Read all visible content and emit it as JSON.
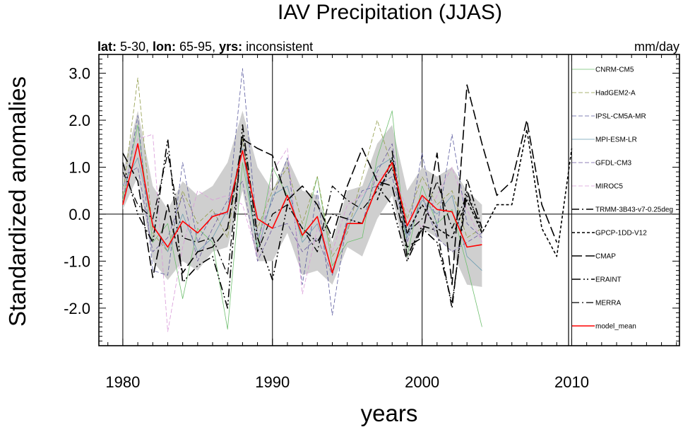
{
  "chart_data": {
    "type": "line",
    "title": "IAV Precipitation (JJAS)",
    "subtitle_left": [
      {
        "text": "lat:",
        "bold": true
      },
      {
        "text": " 5-30, ",
        "bold": false
      },
      {
        "text": "lon:",
        "bold": true
      },
      {
        "text": " 65-95, ",
        "bold": false
      },
      {
        "text": "yrs:",
        "bold": true
      },
      {
        "text": " inconsistent",
        "bold": false
      }
    ],
    "subtitle_right": "mm/day",
    "xlabel": "years",
    "ylabel": "Standardized anomalies",
    "xlim": [
      1978.4,
      2017.2
    ],
    "ylim": [
      -2.8,
      3.4
    ],
    "xticks": [
      1980,
      1990,
      2000,
      2010
    ],
    "yticks": [
      3.0,
      2.0,
      1.0,
      0.0,
      -1.0,
      -2.0
    ],
    "ytick_labels": [
      "3.0",
      "2.0",
      "1.0",
      "0.0",
      "-1.0",
      "-2.0"
    ],
    "vlines": [
      1980,
      1990,
      2000,
      2010
    ],
    "hline": 0,
    "legend_position": "right",
    "envelope": {
      "x": [
        1980,
        1981,
        1982,
        1983,
        1984,
        1985,
        1986,
        1987,
        1988,
        1989,
        1990,
        1991,
        1992,
        1993,
        1994,
        1995,
        1996,
        1997,
        1998,
        1999,
        2000,
        2001,
        2002,
        2003,
        2004
      ],
      "upper": [
        0.9,
        2.2,
        0.6,
        0.1,
        0.7,
        0.4,
        0.6,
        1.1,
        2.2,
        1.0,
        0.5,
        1.2,
        0.5,
        0.4,
        -0.6,
        0.5,
        0.6,
        1.5,
        1.9,
        0.5,
        1.0,
        0.8,
        1.0,
        0.5,
        0.2
      ],
      "lower": [
        0.1,
        0.8,
        -1.0,
        -1.4,
        -1.0,
        -1.2,
        -0.8,
        -0.7,
        0.5,
        -1.0,
        -1.0,
        -0.4,
        -1.3,
        -1.2,
        -1.5,
        -0.7,
        -0.9,
        -0.1,
        0.4,
        -1.0,
        -0.3,
        -0.5,
        -0.8,
        -1.5,
        -1.55
      ]
    },
    "series": [
      {
        "name": "CNRM-CM5",
        "color": "#6fbf6f",
        "style": "solid",
        "width": 0.8,
        "x": [
          1980,
          1981,
          1982,
          1983,
          1984,
          1985,
          1986,
          1987,
          1988,
          1989,
          1990,
          1991,
          1992,
          1993,
          1994,
          1995,
          1996,
          1997,
          1998,
          1999,
          2000,
          2001,
          2002,
          2003,
          2004
        ],
        "y": [
          0.3,
          1.9,
          -0.6,
          -0.2,
          -1.8,
          -0.3,
          -0.6,
          -2.45,
          1.1,
          -0.7,
          1.0,
          0.4,
          -0.5,
          0.8,
          -1.1,
          -0.6,
          -0.5,
          1.2,
          2.2,
          -0.9,
          0.6,
          -0.2,
          0.1,
          -1.1,
          -2.4
        ]
      },
      {
        "name": "HadGEM2-A",
        "color": "#8f9a46",
        "style": "dash",
        "width": 0.8,
        "x": [
          1980,
          1981,
          1982,
          1983,
          1984,
          1985,
          1986,
          1987,
          1988,
          1989,
          1990,
          1991,
          1992,
          1993,
          1994,
          1995,
          1996,
          1997,
          1998,
          1999,
          2000,
          2001,
          2002,
          2003,
          2004
        ],
        "y": [
          0.4,
          2.9,
          -0.4,
          -0.8,
          0.5,
          -0.2,
          0.1,
          -0.5,
          1.6,
          -0.3,
          0.5,
          1.0,
          -0.2,
          0.8,
          -0.9,
          -0.4,
          0.8,
          2.0,
          1.0,
          -0.1,
          0.8,
          0.2,
          0.5,
          -0.5,
          -0.3
        ]
      },
      {
        "name": "IPSL-CM5A-MR",
        "color": "#5a5a9e",
        "style": "dash",
        "width": 0.8,
        "x": [
          1980,
          1981,
          1982,
          1983,
          1984,
          1985,
          1986,
          1987,
          1988,
          1989,
          1990,
          1991,
          1992,
          1993,
          1994,
          1995,
          1996,
          1997,
          1998,
          1999,
          2000,
          2001,
          2002,
          2003,
          2004
        ],
        "y": [
          0.2,
          2.1,
          -1.2,
          -1.3,
          1.1,
          -0.6,
          0.0,
          0.0,
          3.1,
          -0.5,
          0.3,
          1.2,
          -1.5,
          0.5,
          -2.15,
          -0.1,
          0.5,
          0.6,
          0.8,
          -0.5,
          1.3,
          -0.3,
          1.7,
          -0.2,
          -0.5
        ]
      },
      {
        "name": "MPI-ESM-LR",
        "color": "#6a9cb0",
        "style": "solid",
        "width": 0.8,
        "x": [
          1980,
          1981,
          1982,
          1983,
          1984,
          1985,
          1986,
          1987,
          1988,
          1989,
          1990,
          1991,
          1992,
          1993,
          1994,
          1995,
          1996,
          1997,
          1998,
          1999,
          2000,
          2001,
          2002,
          2003,
          2004
        ],
        "y": [
          0.6,
          1.2,
          -0.2,
          -0.8,
          0.0,
          -0.8,
          -0.5,
          0.1,
          1.4,
          -0.8,
          0.4,
          0.6,
          -0.6,
          -0.2,
          -1.2,
          -0.3,
          0.3,
          1.0,
          1.2,
          -0.5,
          0.3,
          0.0,
          0.4,
          -0.9,
          -1.2
        ]
      },
      {
        "name": "GFDL-CM3",
        "color": "#6b5aa0",
        "style": "dash",
        "width": 0.8,
        "x": [
          1980,
          1981,
          1982,
          1983,
          1984,
          1985,
          1986,
          1987,
          1988,
          1989,
          1990,
          1991,
          1992,
          1993,
          1994,
          1995,
          1996,
          1997,
          1998,
          1999,
          2000,
          2001,
          2002,
          2003,
          2004
        ],
        "y": [
          0.8,
          1.0,
          -0.8,
          -0.5,
          0.4,
          -1.0,
          -0.3,
          0.3,
          0.7,
          -1.0,
          -0.3,
          -0.2,
          -0.8,
          -0.5,
          -1.3,
          -0.1,
          -0.2,
          0.9,
          1.5,
          -0.6,
          0.4,
          -0.5,
          -0.8,
          -0.6,
          -0.4
        ]
      },
      {
        "name": "MIROC5",
        "color": "#d99ad9",
        "style": "dash",
        "width": 0.8,
        "x": [
          1980,
          1981,
          1982,
          1983,
          1984,
          1985,
          1986,
          1987,
          1988,
          1989,
          1990,
          1991,
          1992,
          1993,
          1994,
          1995,
          1996,
          1997,
          1998,
          1999,
          2000,
          2001,
          2002,
          2003,
          2004
        ],
        "y": [
          0.5,
          1.6,
          1.7,
          -2.5,
          -0.7,
          0.5,
          0.3,
          0.4,
          0.2,
          -0.9,
          0.9,
          1.4,
          -1.7,
          -0.3,
          -0.8,
          0.2,
          0.4,
          0.8,
          0.9,
          0.1,
          -0.3,
          0.4,
          1.0,
          0.1,
          -0.6
        ]
      },
      {
        "name": "TRMM-3B43-v7-0.25deg",
        "color": "#000000",
        "style": "dashdot",
        "width": 1.6,
        "x": [
          1998,
          1999,
          2000,
          2001,
          2002,
          2003,
          2004
        ],
        "y": [
          1.35,
          -0.9,
          -0.25,
          -0.35,
          -2.0,
          0.75,
          -0.3
        ]
      },
      {
        "name": "GPCP-1DD-V12",
        "color": "#000000",
        "style": "shortdash",
        "width": 1.6,
        "x": [
          1997,
          1998,
          1999,
          2000,
          2001,
          2002,
          2003,
          2004,
          2005,
          2006,
          2007,
          2008,
          2009,
          2010
        ],
        "y": [
          0.3,
          1.2,
          -0.4,
          0.2,
          -0.3,
          -0.5,
          0.3,
          -0.4,
          0.2,
          0.2,
          1.8,
          -0.3,
          -0.9,
          1.4
        ]
      },
      {
        "name": "CMAP",
        "color": "#000000",
        "style": "longdash",
        "width": 1.6,
        "x": [
          1980,
          1981,
          1982,
          1983,
          1984,
          1985,
          1986,
          1987,
          1988,
          1989,
          1990,
          1991,
          1992,
          1993,
          1994,
          1995,
          1996,
          1997,
          1998,
          1999,
          2000,
          2001,
          2002,
          2003,
          2004,
          2005,
          2006,
          2007,
          2008,
          2009
        ],
        "y": [
          1.3,
          0.7,
          -1.35,
          0.2,
          -1.25,
          -0.8,
          -0.7,
          -0.3,
          1.6,
          1.4,
          1.25,
          0.3,
          0.6,
          0.2,
          -0.5,
          0.6,
          1.4,
          0.7,
          0.6,
          -0.7,
          -0.5,
          1.3,
          -1.5,
          2.75,
          1.5,
          0.4,
          0.7,
          2.0,
          0.2,
          -0.6
        ]
      },
      {
        "name": "ERAINT",
        "color": "#000000",
        "style": "dashdotdot",
        "width": 1.6,
        "x": [
          1980,
          1981,
          1982,
          1983,
          1984,
          1985,
          1986,
          1987,
          1988,
          1989,
          1990,
          1991,
          1992,
          1993,
          1994,
          1995,
          1996,
          1997,
          1998,
          1999,
          2000,
          2001,
          2002,
          2003,
          2004
        ],
        "y": [
          1.1,
          0.0,
          -0.6,
          1.6,
          -1.45,
          -1.1,
          -0.9,
          -2.0,
          1.9,
          -0.5,
          -1.4,
          0.2,
          -0.3,
          -0.6,
          0.0,
          -0.1,
          -0.2,
          0.6,
          0.2,
          -1.0,
          -0.3,
          -0.6,
          -1.9,
          0.5,
          -0.4
        ]
      },
      {
        "name": "MERRA",
        "color": "#000000",
        "style": "dashdot",
        "width": 1.3,
        "x": [
          1980,
          1981,
          1982,
          1983,
          1984,
          1985,
          1986,
          1987,
          1988,
          1989,
          1990,
          1991,
          1992,
          1993,
          1994,
          1995,
          1996,
          1997,
          1998,
          1999,
          2000,
          2001,
          2002,
          2003,
          2004
        ],
        "y": [
          0.9,
          0.2,
          -0.1,
          1.3,
          -0.5,
          -0.6,
          -0.5,
          -1.3,
          1.7,
          -0.8,
          0.0,
          0.2,
          -0.3,
          -0.8,
          0.6,
          0.3,
          0.1,
          0.5,
          1.0,
          -0.4,
          -0.1,
          0.7,
          -0.3,
          0.4,
          -0.3
        ]
      },
      {
        "name": "model_mean",
        "color": "#ff0000",
        "style": "solid",
        "width": 1.6,
        "x": [
          1980,
          1981,
          1982,
          1983,
          1984,
          1985,
          1986,
          1987,
          1988,
          1989,
          1990,
          1991,
          1992,
          1993,
          1994,
          1995,
          1996,
          1997,
          1998,
          1999,
          2000,
          2001,
          2002,
          2003,
          2004
        ],
        "y": [
          0.2,
          1.5,
          -0.25,
          -0.7,
          -0.15,
          -0.4,
          -0.05,
          0.05,
          1.35,
          -0.1,
          -0.3,
          0.4,
          -0.45,
          -0.05,
          -1.25,
          -0.2,
          -0.2,
          0.6,
          1.1,
          -0.25,
          0.4,
          0.1,
          0.05,
          -0.7,
          -0.65
        ]
      }
    ]
  }
}
